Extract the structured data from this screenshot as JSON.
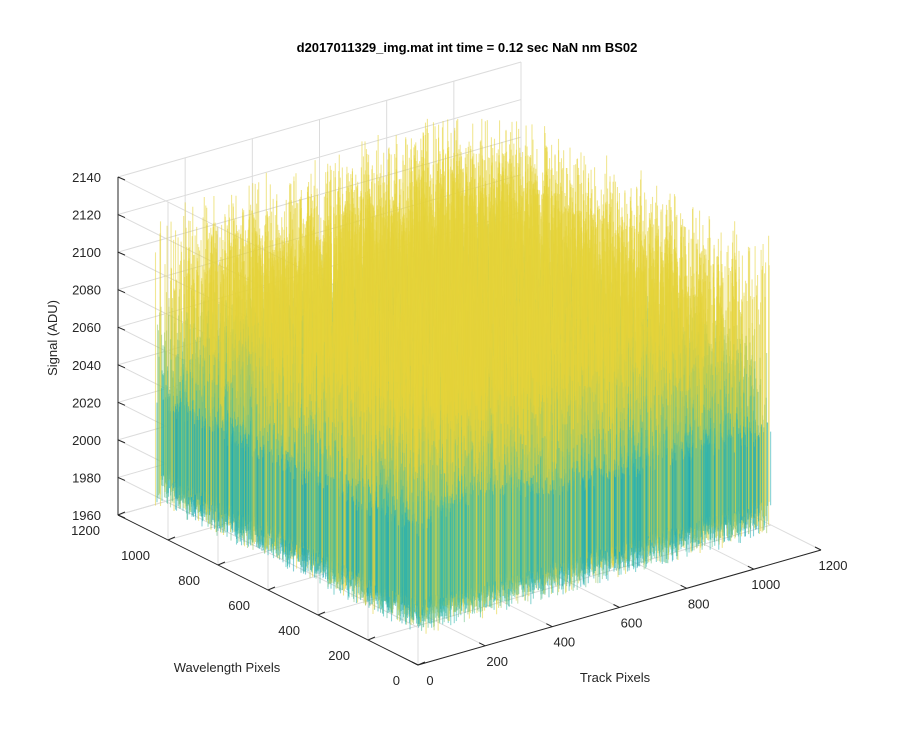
{
  "chart_data": {
    "type": "surface",
    "title": "d2017011329_img.mat int time = 0.12 sec  NaN nm BS02",
    "xlabel": "Track Pixels",
    "ylabel": "Wavelength Pixels",
    "zlabel": "Signal (ADU)",
    "xlim": [
      0,
      1200
    ],
    "ylim": [
      0,
      1200
    ],
    "zlim": [
      1960,
      2140
    ],
    "xticks": [
      0,
      200,
      400,
      600,
      800,
      1000,
      1200
    ],
    "yticks": [
      0,
      200,
      400,
      600,
      800,
      1000,
      1200
    ],
    "zticks": [
      1960,
      1980,
      2000,
      2020,
      2040,
      2060,
      2080,
      2100,
      2120,
      2140
    ],
    "grid": true,
    "colormap": "parula",
    "surface_extent": {
      "track": [
        0,
        1050
      ],
      "wavelength": [
        0,
        1050
      ]
    },
    "baseline_signal": 2025,
    "noise_range": [
      1975,
      2130
    ],
    "colors": {
      "low": "#0072bd",
      "mid": "#2fb9b0",
      "high": "#e6d33a"
    }
  }
}
